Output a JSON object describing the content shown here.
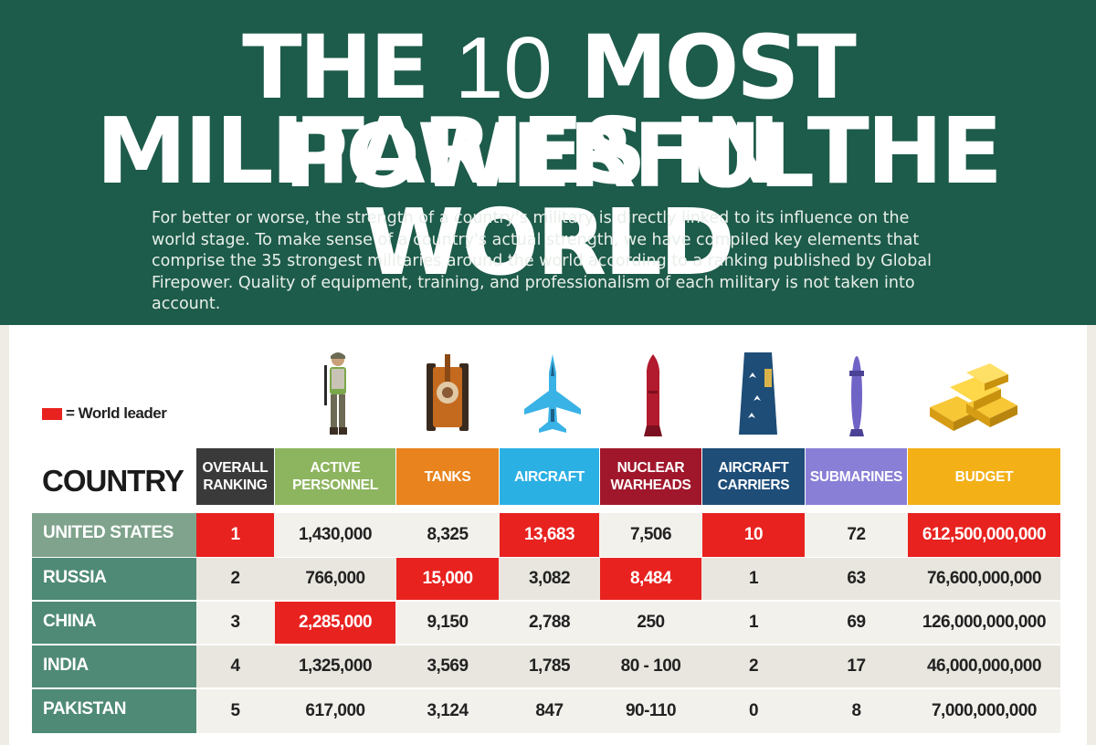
{
  "header": {
    "title_line1_a": "THE",
    "title_line1_num": "10",
    "title_line1_b": "MOST POWERFUL",
    "title_line2": "MILITARIES IN THE WORLD",
    "intro": "For better or worse, the strength of a country's military is directly linked to its influence on the world stage. To make sense of a country's actual strength, we have compiled key elements that comprise the 35 strongest militaries around the world according to a ranking published by Global Firepower. Quality of equipment, training, and professionalism of each military is not taken into account."
  },
  "legend": {
    "label": "= World leader",
    "color": "#e8221f"
  },
  "icons": [
    "soldier-icon",
    "tank-icon",
    "fighter-jet-icon",
    "nuclear-warhead-icon",
    "aircraft-carrier-icon",
    "submarine-icon",
    "gold-bars-icon"
  ],
  "table": {
    "country_header": "COUNTRY",
    "columns": [
      {
        "label": "OVERALL RANKING",
        "color": "#3a3a3a"
      },
      {
        "label": "ACTIVE PERSONNEL",
        "color": "#8db45e"
      },
      {
        "label": "TANKS",
        "color": "#e8831d"
      },
      {
        "label": "AIRCRAFT",
        "color": "#2bb0e4"
      },
      {
        "label": "NUCLEAR WARHEADS",
        "color": "#a0172b"
      },
      {
        "label": "AIRCRAFT CARRIERS",
        "color": "#1e4d78"
      },
      {
        "label": "SUBMARINES",
        "color": "#8a7fd6"
      },
      {
        "label": "BUDGET",
        "color": "#f3b017"
      }
    ],
    "rows": [
      {
        "country": "UNITED STATES",
        "values": [
          "1",
          "1,430,000",
          "8,325",
          "13,683",
          "7,506",
          "10",
          "72",
          "612,500,000,000"
        ],
        "leaders": [
          0,
          3,
          5,
          7
        ]
      },
      {
        "country": "RUSSIA",
        "values": [
          "2",
          "766,000",
          "15,000",
          "3,082",
          "8,484",
          "1",
          "63",
          "76,600,000,000"
        ],
        "leaders": [
          2,
          4
        ]
      },
      {
        "country": "CHINA",
        "values": [
          "3",
          "2,285,000",
          "9,150",
          "2,788",
          "250",
          "1",
          "69",
          "126,000,000,000"
        ],
        "leaders": [
          1
        ]
      },
      {
        "country": "INDIA",
        "values": [
          "4",
          "1,325,000",
          "3,569",
          "1,785",
          "80 - 100",
          "2",
          "17",
          "46,000,000,000"
        ],
        "leaders": []
      },
      {
        "country": "PAKISTAN",
        "values": [
          "5",
          "617,000",
          "3,124",
          "847",
          "90-110",
          "0",
          "8",
          "7,000,000,000"
        ],
        "leaders": []
      }
    ]
  }
}
